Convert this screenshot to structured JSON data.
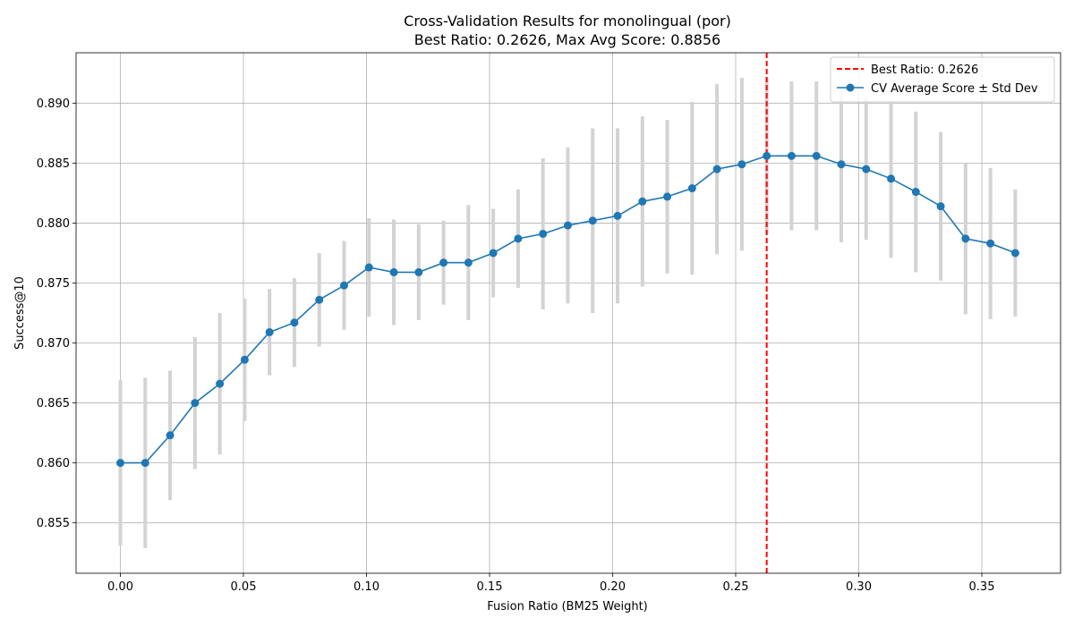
{
  "chart_data": {
    "type": "line",
    "title_line1": "Cross-Validation Results for monolingual (por)",
    "title_line2": "Best Ratio: 0.2626, Max Avg Score: 0.8856",
    "xlabel": "Fusion Ratio (BM25 Weight)",
    "ylabel": "Success@10",
    "xlim": [
      -0.018,
      0.382
    ],
    "ylim": [
      0.8508,
      0.8942
    ],
    "x_ticks": [
      0.0,
      0.05,
      0.1,
      0.15,
      0.2,
      0.25,
      0.3,
      0.35
    ],
    "x_tick_labels": [
      "0.00",
      "0.05",
      "0.10",
      "0.15",
      "0.20",
      "0.25",
      "0.30",
      "0.35"
    ],
    "y_ticks": [
      0.855,
      0.86,
      0.865,
      0.87,
      0.875,
      0.88,
      0.885,
      0.89
    ],
    "y_tick_labels": [
      "0.855",
      "0.860",
      "0.865",
      "0.870",
      "0.875",
      "0.880",
      "0.885",
      "0.890"
    ],
    "grid": true,
    "legend_position": "top-right",
    "best_ratio": {
      "x": 0.2626,
      "label": "Best Ratio: 0.2626",
      "color": "#ff0000",
      "style": "dashed"
    },
    "series": [
      {
        "name": "CV Average Score ± Std Dev",
        "color": "#1f77b4",
        "errorbar_color": "#d3d3d3",
        "x": [
          0.0,
          0.0101,
          0.0202,
          0.0303,
          0.0404,
          0.0505,
          0.0606,
          0.0707,
          0.0808,
          0.0909,
          0.101,
          0.1111,
          0.1212,
          0.1313,
          0.1414,
          0.1515,
          0.1616,
          0.1717,
          0.1818,
          0.1919,
          0.202,
          0.2121,
          0.2222,
          0.2323,
          0.2424,
          0.2525,
          0.2626,
          0.2727,
          0.2828,
          0.2929,
          0.303,
          0.3131,
          0.3232,
          0.3333,
          0.3434,
          0.3535,
          0.3636
        ],
        "y": [
          0.86,
          0.86,
          0.8623,
          0.865,
          0.8666,
          0.8686,
          0.8709,
          0.8717,
          0.8736,
          0.8748,
          0.8763,
          0.8759,
          0.8759,
          0.8767,
          0.8767,
          0.8775,
          0.8787,
          0.8791,
          0.8798,
          0.8802,
          0.8806,
          0.8818,
          0.8822,
          0.8829,
          0.8845,
          0.8849,
          0.8856,
          0.8856,
          0.8856,
          0.8849,
          0.8845,
          0.8837,
          0.8826,
          0.8814,
          0.8787,
          0.8783,
          0.8775
        ],
        "std": [
          0.0069,
          0.0071,
          0.0054,
          0.0055,
          0.0059,
          0.0051,
          0.0036,
          0.0037,
          0.0039,
          0.0037,
          0.0041,
          0.0044,
          0.004,
          0.0035,
          0.0048,
          0.0037,
          0.0041,
          0.0063,
          0.0065,
          0.0077,
          0.0073,
          0.0071,
          0.0064,
          0.0072,
          0.0071,
          0.0072,
          0.0065,
          0.0062,
          0.0062,
          0.0065,
          0.0059,
          0.0066,
          0.0067,
          0.0062,
          0.0063,
          0.0063,
          0.0053
        ]
      }
    ]
  }
}
